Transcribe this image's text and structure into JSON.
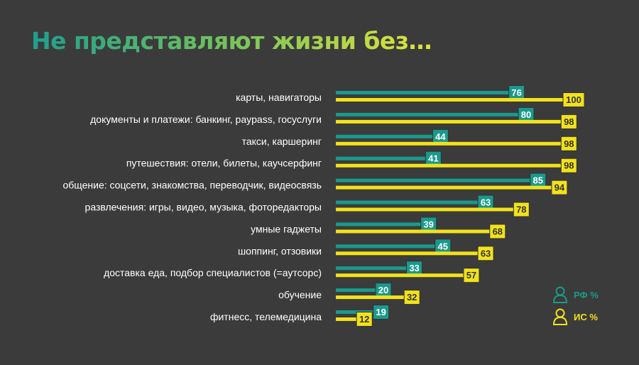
{
  "title": "Не представляют жизни без…",
  "colors": {
    "rf": "#1a9a8c",
    "is": "#f2e21a",
    "background": "#3b3b3b",
    "label": "#ffffff"
  },
  "legend": {
    "rf_label": "РФ %",
    "is_label": "ИС %",
    "icon": "person-outline-icon"
  },
  "chart_data": {
    "type": "bar",
    "orientation": "horizontal",
    "categories": [
      "карты, навигаторы",
      "документы и платежи: банкинг, paypass, госуслуги",
      "такси, каршеринг",
      "путешествия: отели, билеты, каучсерфинг",
      "общение: соцсети, знакомства, переводчик, видеосвязь",
      "развлечения: игры, видео, музыка, фоторедакторы",
      "умные гаджеты",
      "шоппинг, отзовики",
      "доставка еда, подбор специалистов (=аутсорс)",
      "обучение",
      "фитнесс, телемедицина"
    ],
    "series": [
      {
        "name": "РФ %",
        "values": [
          76,
          80,
          44,
          41,
          85,
          63,
          39,
          45,
          33,
          20,
          19
        ]
      },
      {
        "name": "ИС %",
        "values": [
          100,
          98,
          98,
          98,
          94,
          78,
          68,
          63,
          57,
          32,
          12
        ]
      }
    ],
    "xlim": [
      0,
      100
    ],
    "data_labels": true,
    "legend_position": "bottom-right",
    "grid": false
  }
}
